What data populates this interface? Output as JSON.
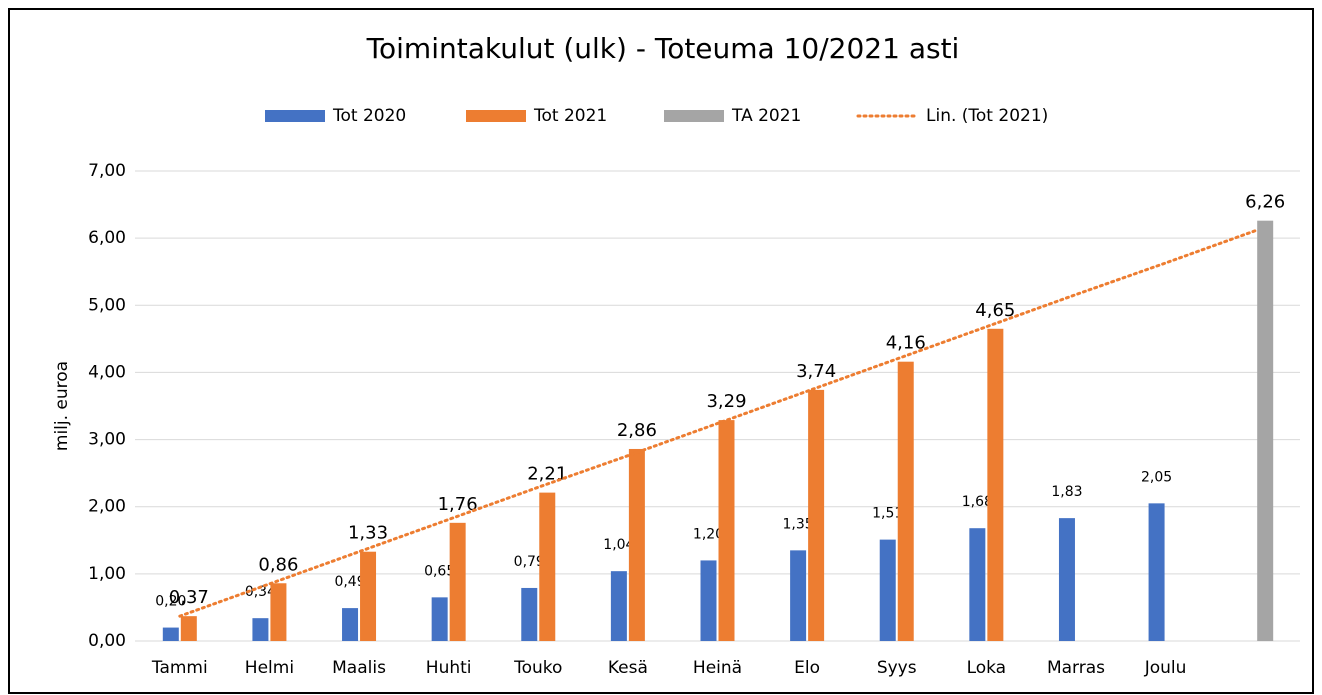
{
  "chart_data": {
    "type": "bar",
    "title": "Toimintakulut (ulk) - Toteuma 10/2021 asti",
    "y_label": "milj. euroa",
    "categories": [
      "Tammi",
      "Helmi",
      "Maalis",
      "Huhti",
      "Touko",
      "Kesä",
      "Heinä",
      "Elo",
      "Syys",
      "Loka",
      "Marras",
      "Joulu",
      null
    ],
    "series": [
      {
        "name": "Tot 2020",
        "color": "#4472c4",
        "values": [
          0.2,
          0.34,
          0.49,
          0.65,
          0.79,
          1.04,
          1.2,
          1.35,
          1.51,
          1.68,
          1.83,
          2.05,
          null
        ],
        "value_labels": [
          "0,20",
          "0,34",
          "0,49",
          "0,65",
          "0,79",
          "1,04",
          "1,20",
          "1,35",
          "1,51",
          "1,68",
          "1,83",
          "2,05",
          null
        ]
      },
      {
        "name": "Tot 2021",
        "color": "#ed7d31",
        "values": [
          0.37,
          0.86,
          1.33,
          1.76,
          2.21,
          2.86,
          3.29,
          3.74,
          4.16,
          4.65,
          null,
          null,
          null
        ],
        "value_labels": [
          "0,37",
          "0,86",
          "1,33",
          "1,76",
          "2,21",
          "2,86",
          "3,29",
          "3,74",
          "4,16",
          "4,65",
          null,
          null,
          null
        ]
      },
      {
        "name": "TA 2021",
        "color": "#a5a5a5",
        "values": [
          null,
          null,
          null,
          null,
          null,
          null,
          null,
          null,
          null,
          null,
          null,
          null,
          6.26
        ],
        "value_labels": [
          null,
          null,
          null,
          null,
          null,
          null,
          null,
          null,
          null,
          null,
          null,
          null,
          "6,26"
        ]
      },
      {
        "name": "Lin. (Tot 2021)",
        "color": "#ed7d31",
        "type": "line",
        "dash": "dotted",
        "values": [
          0.37,
          0.85,
          1.33,
          1.81,
          2.29,
          2.76,
          3.24,
          3.72,
          4.2,
          4.68,
          5.16,
          5.63,
          6.11
        ]
      }
    ],
    "ylim": [
      0,
      7
    ],
    "yticks": [
      {
        "value": 0,
        "label": "0,00"
      },
      {
        "value": 1,
        "label": "1,00"
      },
      {
        "value": 2,
        "label": "2,00"
      },
      {
        "value": 3,
        "label": "3,00"
      },
      {
        "value": 4,
        "label": "4,00"
      },
      {
        "value": 5,
        "label": "5,00"
      },
      {
        "value": 6,
        "label": "6,00"
      },
      {
        "value": 7,
        "label": "7,00"
      }
    ],
    "grid": true,
    "legend": "top"
  }
}
